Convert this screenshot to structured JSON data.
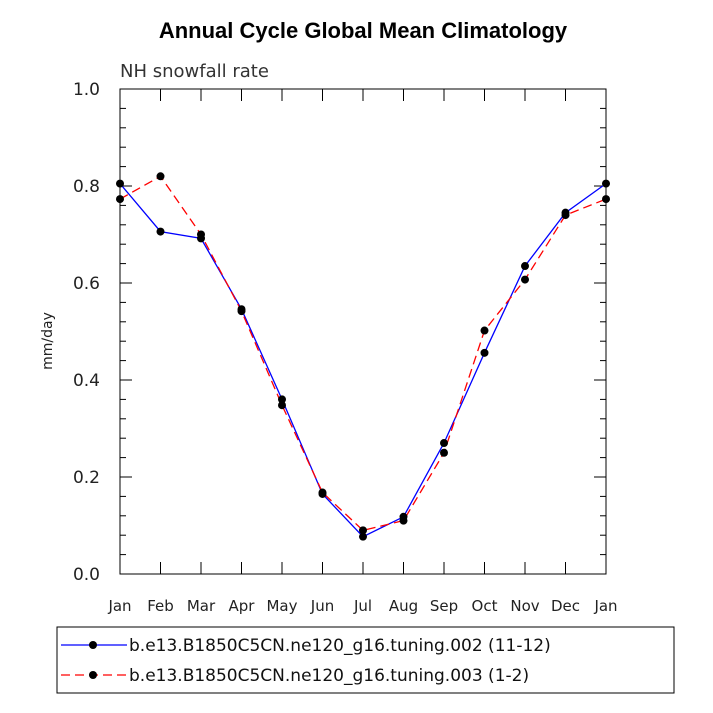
{
  "chart_data": {
    "type": "line",
    "title": "Annual Cycle Global Mean Climatology",
    "subtitle": "NH snowfall rate",
    "xlabel": "",
    "ylabel": "mm/day",
    "ylim": [
      0.0,
      1.0
    ],
    "yticks": [
      0.0,
      0.2,
      0.4,
      0.6,
      0.8,
      1.0
    ],
    "ytick_labels": [
      "0.0",
      "0.2",
      "0.4",
      "0.6",
      "0.8",
      "1.0"
    ],
    "categories": [
      "Jan",
      "Feb",
      "Mar",
      "Apr",
      "May",
      "Jun",
      "Jul",
      "Aug",
      "Sep",
      "Oct",
      "Nov",
      "Dec",
      "Jan"
    ],
    "series": [
      {
        "name": "b.e13.B1850C5CN.ne120_g16.tuning.002 (11-12)",
        "color": "#0000ff",
        "style": "solid",
        "values": [
          0.805,
          0.706,
          0.692,
          0.546,
          0.36,
          0.165,
          0.077,
          0.118,
          0.27,
          0.456,
          0.635,
          0.745,
          0.805
        ]
      },
      {
        "name": "b.e13.B1850C5CN.ne120_g16.tuning.003 (1-2)",
        "color": "#ff0000",
        "style": "dashed",
        "values": [
          0.773,
          0.82,
          0.7,
          0.542,
          0.348,
          0.168,
          0.09,
          0.11,
          0.25,
          0.502,
          0.607,
          0.74,
          0.773
        ]
      }
    ]
  }
}
